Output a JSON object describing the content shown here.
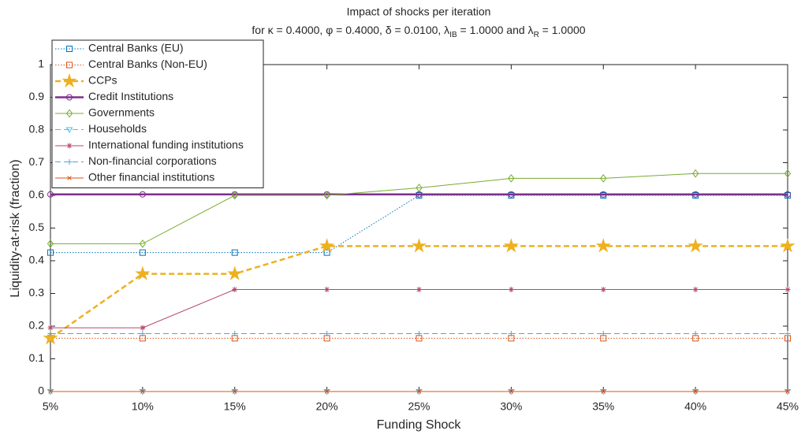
{
  "chart_data": {
    "type": "line",
    "title": "Impact of shocks per iteration",
    "subtitle": [
      "for κ = 0.4000, φ = 0.4000, δ = 0.0100, λ",
      "IB",
      " = 1.0000 and λ",
      "R",
      " = 1.0000"
    ],
    "x_label": "Funding Shock",
    "y_label": "Liquidity-at-risk (fraction)",
    "categories": [
      "5%",
      "10%",
      "15%",
      "20%",
      "25%",
      "30%",
      "35%",
      "40%",
      "45%"
    ],
    "ylim": [
      0,
      1
    ],
    "yticks": [
      0,
      0.1,
      0.2,
      0.3,
      0.4,
      0.5,
      0.6,
      0.7,
      0.8,
      0.9,
      1
    ],
    "legend": "northwest",
    "series": [
      {
        "name": "Central Banks (EU)",
        "color": "#0072BD",
        "linestyle": "dotted",
        "marker": "square",
        "values": [
          0.425,
          0.425,
          0.425,
          0.425,
          0.6,
          0.6,
          0.6,
          0.6,
          0.6
        ]
      },
      {
        "name": "Central Banks (Non-EU)",
        "color": "#D95319",
        "linestyle": "dotted",
        "marker": "square",
        "values": [
          0.163,
          0.163,
          0.163,
          0.163,
          0.163,
          0.163,
          0.163,
          0.163,
          0.163
        ]
      },
      {
        "name": "CCPs",
        "color": "#EDB120",
        "linestyle": "dashed",
        "marker": "star",
        "width": 2.5,
        "values": [
          0.163,
          0.36,
          0.36,
          0.445,
          0.445,
          0.445,
          0.445,
          0.445,
          0.445
        ]
      },
      {
        "name": "Credit Institutions",
        "color": "#7E2F8E",
        "linestyle": "solid",
        "marker": "circle",
        "width": 2.5,
        "values": [
          0.603,
          0.603,
          0.603,
          0.603,
          0.603,
          0.603,
          0.603,
          0.603,
          0.603
        ]
      },
      {
        "name": "Governments",
        "color": "#77AC30",
        "linestyle": "solid",
        "marker": "diamond",
        "values": [
          0.452,
          0.452,
          0.6,
          0.6,
          0.623,
          0.652,
          0.652,
          0.667,
          0.667
        ]
      },
      {
        "name": "Households",
        "color": "#4DBEEE",
        "linestyle": "dashed",
        "marker": "triangle-down",
        "values": [
          0,
          0,
          0,
          0,
          0,
          0,
          0,
          0,
          0
        ]
      },
      {
        "name": "International funding institutions",
        "color": "#B8476B",
        "linestyle": "solid",
        "marker": "asterisk",
        "values": [
          0.195,
          0.195,
          0.312,
          0.312,
          0.312,
          0.312,
          0.312,
          0.312,
          0.312
        ]
      },
      {
        "name": "Non-financial corporations",
        "color": "#4DA6D9",
        "linestyle": "dashed",
        "marker": "plus",
        "values": [
          0.177,
          0.177,
          0.177,
          0.177,
          0.177,
          0.177,
          0.177,
          0.177,
          0.177
        ]
      },
      {
        "name": "Other financial institutions",
        "color": "#D95319",
        "linestyle": "solid",
        "marker": "x",
        "values": [
          0,
          0,
          0,
          0,
          0,
          0,
          0,
          0,
          0
        ]
      }
    ]
  }
}
